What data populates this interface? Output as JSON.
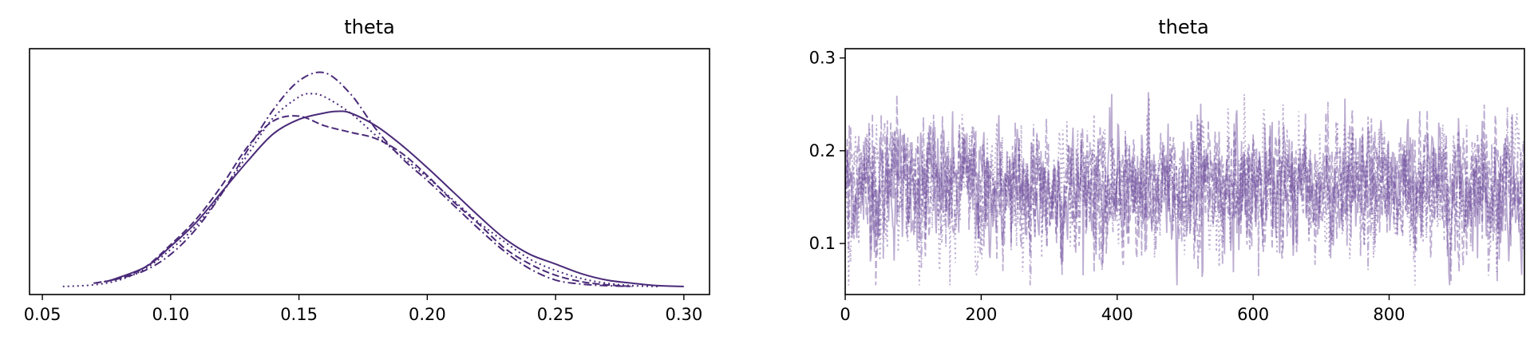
{
  "colors": {
    "line": "#4a2a78",
    "trace": "#6a4a98"
  },
  "chart_data": [
    {
      "type": "line",
      "title": "theta",
      "xlabel": "",
      "ylabel": "",
      "xlim": [
        0.045,
        0.31
      ],
      "ylim": [
        -0.5,
        14.8
      ],
      "xticks": [
        {
          "value": 0.05,
          "label": "0.05"
        },
        {
          "value": 0.1,
          "label": "0.10"
        },
        {
          "value": 0.15,
          "label": "0.15"
        },
        {
          "value": 0.2,
          "label": "0.20"
        },
        {
          "value": 0.25,
          "label": "0.25"
        },
        {
          "value": 0.3,
          "label": "0.30"
        }
      ],
      "yticks": [],
      "series": [
        {
          "style": "solid",
          "x": [
            0.075,
            0.09,
            0.1,
            0.11,
            0.12,
            0.13,
            0.14,
            0.15,
            0.16,
            0.165,
            0.17,
            0.18,
            0.19,
            0.2,
            0.21,
            0.22,
            0.23,
            0.24,
            0.25,
            0.26,
            0.27,
            0.28,
            0.29,
            0.3
          ],
          "y": [
            0.3,
            1.2,
            2.5,
            4.0,
            5.9,
            7.8,
            9.5,
            10.4,
            10.8,
            10.9,
            10.8,
            10.0,
            8.8,
            7.4,
            5.9,
            4.4,
            3.0,
            2.0,
            1.4,
            0.8,
            0.4,
            0.2,
            0.05,
            0.0
          ]
        },
        {
          "style": "dashed",
          "x": [
            0.07,
            0.08,
            0.09,
            0.1,
            0.11,
            0.12,
            0.13,
            0.14,
            0.15,
            0.16,
            0.17,
            0.18,
            0.19,
            0.2,
            0.21,
            0.22,
            0.23,
            0.24,
            0.25,
            0.26,
            0.27,
            0.28
          ],
          "y": [
            0.2,
            0.5,
            1.2,
            2.6,
            4.2,
            6.3,
            8.7,
            10.3,
            10.6,
            10.0,
            9.6,
            9.2,
            8.3,
            6.9,
            5.3,
            3.9,
            2.4,
            1.4,
            0.7,
            0.3,
            0.1,
            0.0
          ]
        },
        {
          "style": "dotted",
          "x": [
            0.058,
            0.07,
            0.08,
            0.09,
            0.1,
            0.11,
            0.12,
            0.13,
            0.14,
            0.15,
            0.155,
            0.16,
            0.17,
            0.18,
            0.19,
            0.2,
            0.21,
            0.22,
            0.23,
            0.24,
            0.25,
            0.26,
            0.27,
            0.28,
            0.29
          ],
          "y": [
            0.0,
            0.1,
            0.4,
            1.1,
            2.3,
            3.8,
            5.8,
            8.2,
            10.5,
            11.8,
            12.0,
            11.8,
            10.8,
            9.4,
            8.1,
            6.8,
            5.4,
            4.0,
            2.8,
            1.7,
            1.0,
            0.5,
            0.2,
            0.05,
            0.0
          ]
        },
        {
          "style": "dashdot",
          "x": [
            0.07,
            0.08,
            0.09,
            0.1,
            0.11,
            0.12,
            0.13,
            0.14,
            0.15,
            0.16,
            0.17,
            0.18,
            0.19,
            0.2,
            0.21,
            0.22,
            0.23,
            0.24,
            0.25,
            0.26,
            0.27,
            0.28
          ],
          "y": [
            0.2,
            0.5,
            1.0,
            2.0,
            3.6,
            5.8,
            8.5,
            11.0,
            12.8,
            13.3,
            12.0,
            9.8,
            8.0,
            6.6,
            5.1,
            3.6,
            2.2,
            1.1,
            0.4,
            0.15,
            0.05,
            0.0
          ]
        }
      ]
    },
    {
      "type": "line",
      "title": "theta",
      "xlabel": "",
      "ylabel": "",
      "xlim": [
        0,
        999
      ],
      "ylim": [
        0.045,
        0.31
      ],
      "xticks": [
        {
          "value": 0,
          "label": "0"
        },
        {
          "value": 200,
          "label": "200"
        },
        {
          "value": 400,
          "label": "400"
        },
        {
          "value": 600,
          "label": "600"
        },
        {
          "value": 800,
          "label": "800"
        }
      ],
      "yticks": [
        {
          "value": 0.1,
          "label": "0.1"
        },
        {
          "value": 0.2,
          "label": "0.2"
        },
        {
          "value": 0.3,
          "label": "0.3"
        }
      ],
      "draws": 1000,
      "chains": 4,
      "chain_styles": [
        "solid",
        "dashed",
        "dotted",
        "dashdot"
      ],
      "mean": 0.16,
      "sd": 0.033
    }
  ]
}
